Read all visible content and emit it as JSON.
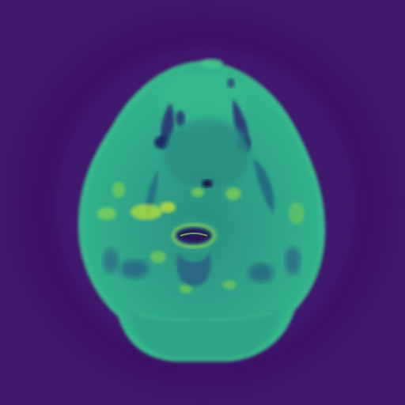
{
  "image": {
    "kind": "MRI axial slice (viridis colormap)",
    "colors": {
      "background": "#3b1166",
      "soft_tissue": "#2fae8c",
      "dense_tissue": "#24977f",
      "bright": "#86d64b",
      "brightest": "#b7e13a",
      "dark_structure": "#2a2a73",
      "airway": "#1e0b3f",
      "noise": "#4a2d86"
    }
  }
}
